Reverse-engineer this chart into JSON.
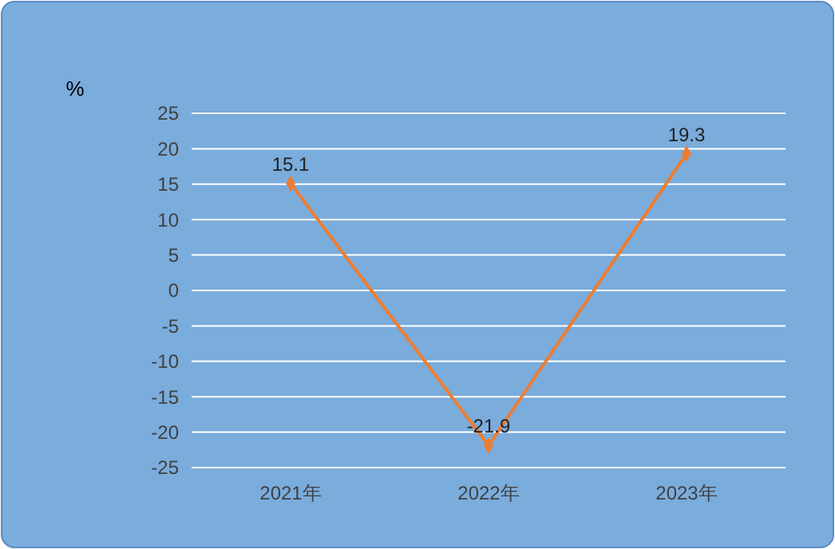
{
  "chart_data": {
    "type": "line",
    "ylabel": "%",
    "categories": [
      "2021年",
      "2022年",
      "2023年"
    ],
    "series": [
      {
        "color": "#ed7d31",
        "values": [
          15.1,
          -21.9,
          19.3
        ]
      }
    ],
    "ylim": [
      -25,
      25
    ],
    "yticks": [
      -25,
      -20,
      -15,
      -10,
      -5,
      0,
      5,
      10,
      15,
      20,
      25
    ],
    "grid": "y",
    "marker": "diamond",
    "data_labels": true
  }
}
